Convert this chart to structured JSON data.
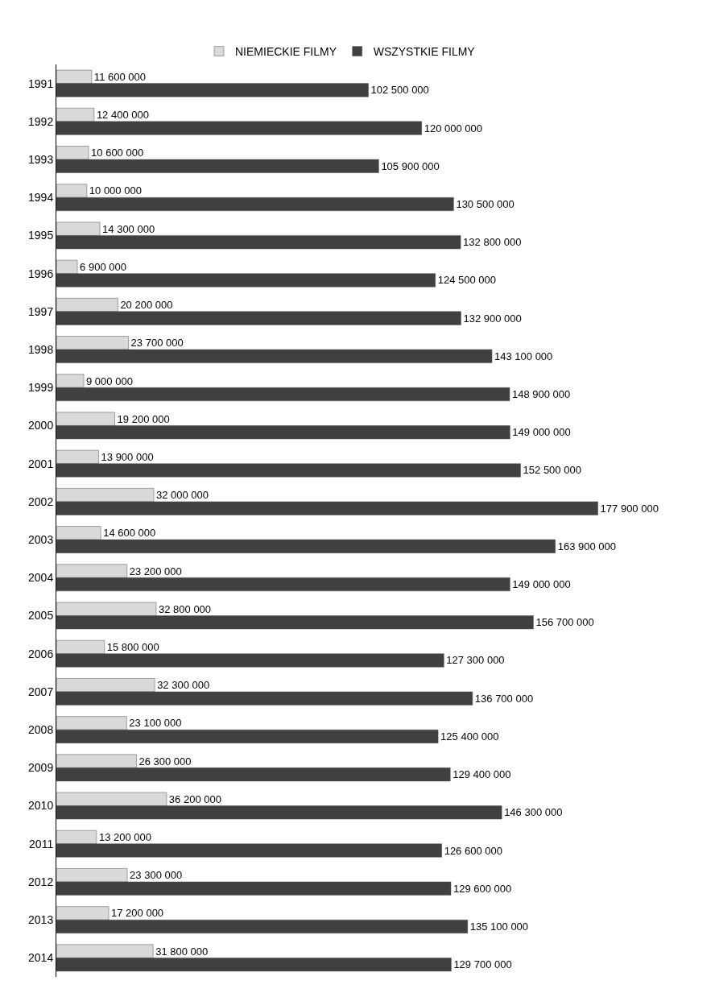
{
  "chart_data": {
    "type": "bar",
    "orientation": "horizontal",
    "legend": "top",
    "tick_labels": "y",
    "categories": [
      "1991",
      "1992",
      "1993",
      "1994",
      "1995",
      "1996",
      "1997",
      "1998",
      "1999",
      "2000",
      "2001",
      "2002",
      "2003",
      "2004",
      "2005",
      "2006",
      "2007",
      "2008",
      "2009",
      "2010",
      "2011",
      "2012",
      "2013",
      "2014"
    ],
    "series": [
      {
        "name": "NIEMIECKIE FILMY",
        "color": "#d9d9d9",
        "values": [
          11600000,
          12400000,
          10600000,
          10000000,
          14300000,
          6900000,
          20200000,
          23700000,
          9000000,
          19200000,
          13900000,
          32000000,
          14600000,
          23200000,
          32800000,
          15800000,
          32300000,
          23100000,
          26300000,
          36200000,
          13200000,
          23300000,
          17200000,
          31800000
        ],
        "value_labels": [
          "11 600 000",
          "12 400 000",
          "10 600 000",
          "10 000 000",
          "14 300 000",
          "6 900 000",
          "20 200 000",
          "23 700 000",
          "9 000 000",
          "19 200 000",
          "13 900 000",
          "32 000 000",
          "14 600 000",
          "23 200 000",
          "32 800 000",
          "15 800 000",
          "32 300 000",
          "23 100 000",
          "26 300 000",
          "36 200 000",
          "13 200 000",
          "23 300 000",
          "17 200 000",
          "31 800 000"
        ]
      },
      {
        "name": "WSZYSTKIE FILMY",
        "color": "#404040",
        "values": [
          102500000,
          120000000,
          105900000,
          130500000,
          132800000,
          124500000,
          132900000,
          143100000,
          148900000,
          149000000,
          152500000,
          177900000,
          163900000,
          149000000,
          156700000,
          127300000,
          136700000,
          125400000,
          129400000,
          146300000,
          126600000,
          129600000,
          135100000,
          129700000
        ],
        "value_labels": [
          "102 500 000",
          "120 000 000",
          "105 900 000",
          "130 500 000",
          "132 800 000",
          "124 500 000",
          "132 900 000",
          "143 100 000",
          "148 900 000",
          "149 000 000",
          "152 500 000",
          "177 900 000",
          "163 900 000",
          "149 000 000",
          "156 700 000",
          "127 300 000",
          "136 700 000",
          "125 400 000",
          "129 400 000",
          "146 300 000",
          "126 600 000",
          "129 600 000",
          "135 100 000",
          "129 700 000"
        ]
      }
    ]
  }
}
